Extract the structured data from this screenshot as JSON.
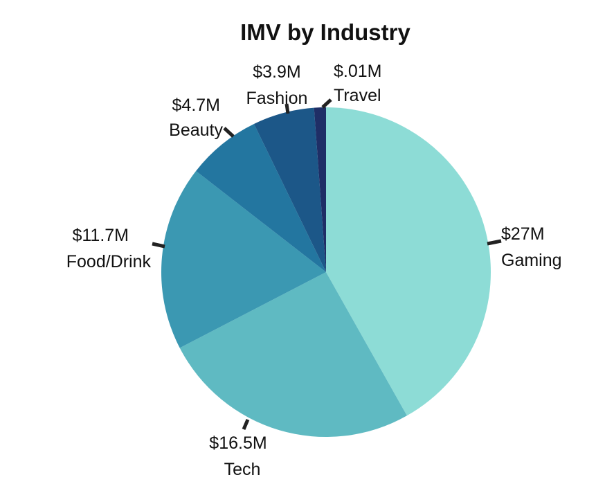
{
  "chart_data": {
    "type": "pie",
    "title": "IMV by Industry",
    "slices": [
      {
        "name": "Gaming",
        "value_label": "$27M",
        "value": 27,
        "color": "#8ddcd6"
      },
      {
        "name": "Tech",
        "value_label": "$16.5M",
        "value": 16.5,
        "color": "#5fbac2"
      },
      {
        "name": "Food/Drink",
        "value_label": "$11.7M",
        "value": 11.7,
        "color": "#3b98b2"
      },
      {
        "name": "Beauty",
        "value_label": "$4.7M",
        "value": 4.7,
        "color": "#2376a0"
      },
      {
        "name": "Fashion",
        "value_label": "$3.9M",
        "value": 3.9,
        "color": "#1c5788"
      },
      {
        "name": "Travel",
        "value_label": "$.01M",
        "value": 0.01,
        "color": "#1f2e66"
      }
    ],
    "start_angle": "12 o'clock",
    "direction": "clockwise",
    "legend": "none (labels outside slices)",
    "grid": false
  }
}
